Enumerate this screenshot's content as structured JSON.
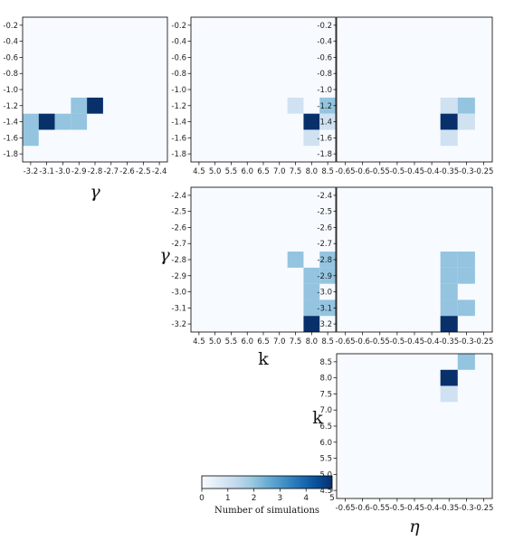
{
  "chart_data": [
    {
      "type": "heatmap",
      "id": "eta-vs-gamma-unused",
      "xlabel": "γ",
      "ylabel": "",
      "x_ticks": [
        "-3.2",
        "-3.1",
        "-3.0",
        "-2.9",
        "-2.8",
        "-2.7",
        "-2.6",
        "-2.5",
        "-2.4"
      ],
      "y_ticks": [
        "-0.2",
        "-0.4",
        "-0.6",
        "-0.8",
        "-1.0",
        "-1.2",
        "-1.4",
        "-1.6",
        "-1.8"
      ],
      "x_range": [
        -3.25,
        -2.35
      ],
      "y_range": [
        -1.9,
        -0.1
      ],
      "x_bin": 0.1,
      "y_bin": 0.2,
      "cells": [
        {
          "x": -3.2,
          "y": -1.4,
          "value": 2
        },
        {
          "x": -3.2,
          "y": -1.6,
          "value": 2
        },
        {
          "x": -3.1,
          "y": -1.4,
          "value": 5
        },
        {
          "x": -3.0,
          "y": -1.4,
          "value": 2
        },
        {
          "x": -2.9,
          "y": -1.4,
          "value": 2
        },
        {
          "x": -2.9,
          "y": -1.2,
          "value": 2
        },
        {
          "x": -2.8,
          "y": -1.2,
          "value": 5
        }
      ]
    },
    {
      "type": "heatmap",
      "id": "k-top",
      "xlabel": "",
      "ylabel": "",
      "x_ticks": [
        "4.5",
        "5.0",
        "5.5",
        "6.0",
        "6.5",
        "7.0",
        "7.5",
        "8.0",
        "8.5"
      ],
      "y_ticks": [
        "-0.2",
        "-0.4",
        "-0.6",
        "-0.8",
        "-1.0",
        "-1.2",
        "-1.4",
        "-1.6",
        "-1.8"
      ],
      "x_range": [
        4.25,
        8.75
      ],
      "y_range": [
        -1.9,
        -0.1
      ],
      "x_bin": 0.5,
      "y_bin": 0.2,
      "cells": [
        {
          "x": 7.5,
          "y": -1.2,
          "value": 1
        },
        {
          "x": 8.0,
          "y": -1.4,
          "value": 5
        },
        {
          "x": 8.0,
          "y": -1.6,
          "value": 1
        },
        {
          "x": 8.5,
          "y": -1.2,
          "value": 2
        },
        {
          "x": 8.5,
          "y": -1.4,
          "value": 1
        }
      ]
    },
    {
      "type": "heatmap",
      "id": "eta-top",
      "xlabel": "",
      "ylabel": "",
      "x_ticks": [
        "-0.65",
        "-0.6",
        "-0.55",
        "-0.5",
        "-0.45",
        "-0.4",
        "-0.35",
        "-0.3",
        "-0.25"
      ],
      "y_ticks": [
        "-0.2",
        "-0.4",
        "-0.6",
        "-0.8",
        "-1.0",
        "-1.2",
        "-1.4",
        "-1.6",
        "-1.8"
      ],
      "x_range": [
        -0.675,
        -0.225
      ],
      "y_range": [
        -1.9,
        -0.1
      ],
      "x_bin": 0.05,
      "y_bin": 0.2,
      "cells": [
        {
          "x": -0.35,
          "y": -1.2,
          "value": 1
        },
        {
          "x": -0.35,
          "y": -1.4,
          "value": 5
        },
        {
          "x": -0.35,
          "y": -1.6,
          "value": 1
        },
        {
          "x": -0.3,
          "y": -1.2,
          "value": 2
        },
        {
          "x": -0.3,
          "y": -1.4,
          "value": 1
        }
      ]
    },
    {
      "type": "heatmap",
      "id": "k-gamma",
      "xlabel": "k",
      "ylabel": "γ",
      "x_ticks": [
        "4.5",
        "5.0",
        "5.5",
        "6.0",
        "6.5",
        "7.0",
        "7.5",
        "8.0",
        "8.5"
      ],
      "y_ticks": [
        "-2.4",
        "-2.5",
        "-2.6",
        "-2.7",
        "-2.8",
        "-2.9",
        "-3.0",
        "-3.1",
        "-3.2"
      ],
      "x_range": [
        4.25,
        8.75
      ],
      "y_range": [
        -3.25,
        -2.35
      ],
      "x_bin": 0.5,
      "y_bin": 0.1,
      "cells": [
        {
          "x": 7.5,
          "y": -2.8,
          "value": 2
        },
        {
          "x": 8.0,
          "y": -2.9,
          "value": 2
        },
        {
          "x": 8.0,
          "y": -3.0,
          "value": 2
        },
        {
          "x": 8.0,
          "y": -3.1,
          "value": 2
        },
        {
          "x": 8.0,
          "y": -3.2,
          "value": 5
        },
        {
          "x": 8.5,
          "y": -2.8,
          "value": 2
        },
        {
          "x": 8.5,
          "y": -2.9,
          "value": 2
        },
        {
          "x": 8.5,
          "y": -3.1,
          "value": 2
        }
      ]
    },
    {
      "type": "heatmap",
      "id": "eta-gamma",
      "xlabel": "",
      "ylabel": "",
      "x_ticks": [
        "-0.65",
        "-0.6",
        "-0.55",
        "-0.5",
        "-0.45",
        "-0.4",
        "-0.35",
        "-0.3",
        "-0.25"
      ],
      "y_ticks": [
        "-2.4",
        "-2.5",
        "-2.6",
        "-2.7",
        "-2.8",
        "-2.9",
        "-3.0",
        "-3.1",
        "-3.2"
      ],
      "x_range": [
        -0.675,
        -0.225
      ],
      "y_range": [
        -3.25,
        -2.35
      ],
      "x_bin": 0.05,
      "y_bin": 0.1,
      "cells": [
        {
          "x": -0.35,
          "y": -2.8,
          "value": 2
        },
        {
          "x": -0.35,
          "y": -2.9,
          "value": 2
        },
        {
          "x": -0.35,
          "y": -3.0,
          "value": 2
        },
        {
          "x": -0.35,
          "y": -3.1,
          "value": 2
        },
        {
          "x": -0.35,
          "y": -3.2,
          "value": 5
        },
        {
          "x": -0.3,
          "y": -2.8,
          "value": 2
        },
        {
          "x": -0.3,
          "y": -2.9,
          "value": 2
        },
        {
          "x": -0.3,
          "y": -3.1,
          "value": 2
        }
      ]
    },
    {
      "type": "heatmap",
      "id": "eta-k",
      "xlabel": "η",
      "ylabel": "k",
      "x_ticks": [
        "-0.65",
        "-0.6",
        "-0.55",
        "-0.5",
        "-0.45",
        "-0.4",
        "-0.35",
        "-0.3",
        "-0.25"
      ],
      "y_ticks": [
        "8.5",
        "8.0",
        "7.5",
        "7.0",
        "6.5",
        "6.0",
        "5.5",
        "5.0",
        "4.5"
      ],
      "x_range": [
        -0.675,
        -0.225
      ],
      "y_range": [
        4.25,
        8.75
      ],
      "x_bin": 0.05,
      "y_bin": 0.5,
      "cells": [
        {
          "x": -0.3,
          "y": 8.5,
          "value": 2
        },
        {
          "x": -0.35,
          "y": 8.0,
          "value": 5
        },
        {
          "x": -0.35,
          "y": 7.5,
          "value": 1
        }
      ]
    }
  ],
  "colorbar": {
    "label": "Number of simulations",
    "min": 0,
    "max": 5,
    "ticks": [
      "0",
      "1",
      "2",
      "3",
      "4",
      "5"
    ],
    "colormap": "Blues",
    "colors": [
      "#f7fbff",
      "#deebf7",
      "#c6dbef",
      "#9ecae1",
      "#6baed6",
      "#4292c6",
      "#2171b5",
      "#08519c",
      "#08306b"
    ]
  }
}
